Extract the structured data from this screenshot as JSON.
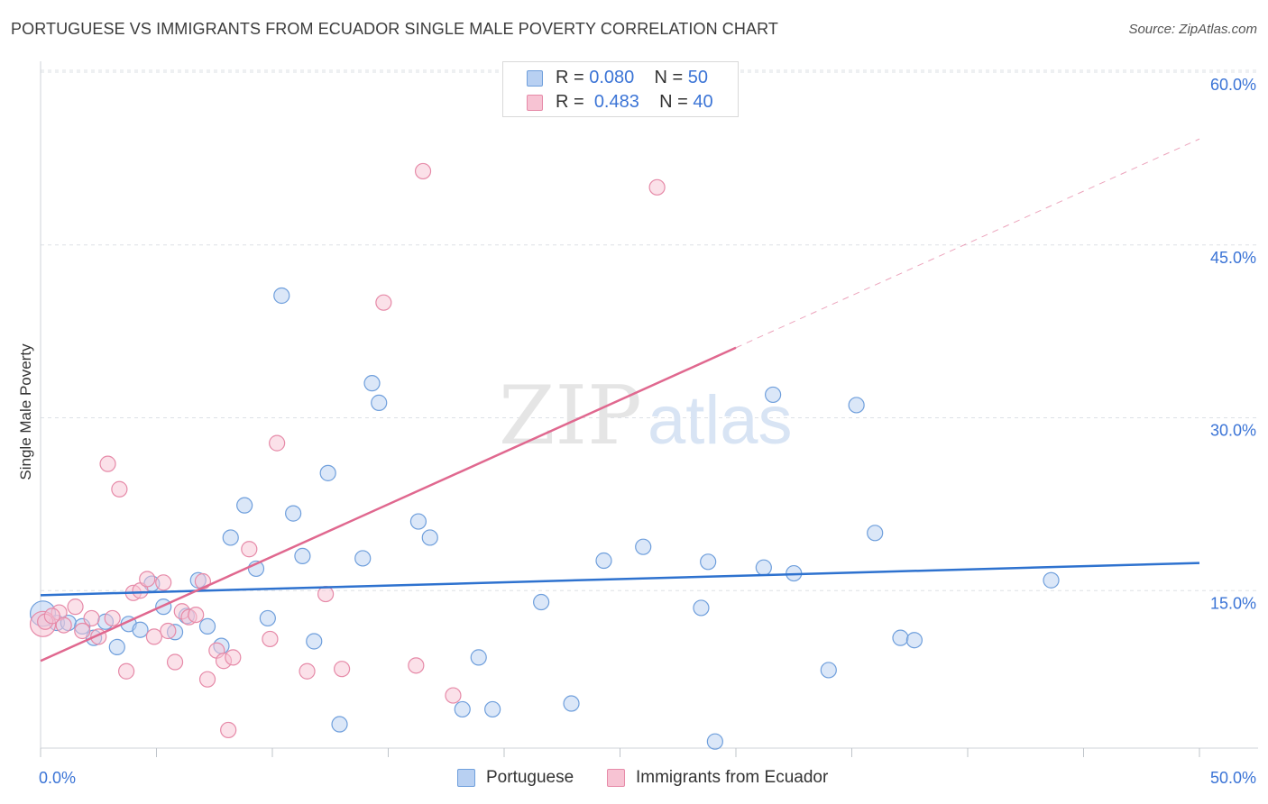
{
  "title": "PORTUGUESE VS IMMIGRANTS FROM ECUADOR SINGLE MALE POVERTY CORRELATION CHART",
  "source": "Source: ZipAtlas.com",
  "watermark": {
    "zip": "ZIP",
    "atlas": "atlas"
  },
  "colors": {
    "blue_fill": "#b8d0f2",
    "blue_stroke": "#6f9fdc",
    "blue_line": "#2e72cf",
    "pink_fill": "#f7c3d3",
    "pink_stroke": "#e68aa8",
    "pink_line": "#e0688f",
    "axis_label": "#3b74d6",
    "grid": "#dde1e6"
  },
  "stats": [
    {
      "r_label": "R =",
      "r_value": "0.080",
      "n_label": "N =",
      "n_value": "50"
    },
    {
      "r_label": "R =",
      "r_value": "0.483",
      "n_label": "N =",
      "n_value": "40"
    }
  ],
  "chart_data": {
    "type": "scatter",
    "title": "PORTUGUESE VS IMMIGRANTS FROM ECUADOR SINGLE MALE POVERTY CORRELATION CHART",
    "xlabel": "",
    "ylabel": "Single Male Poverty",
    "xlim": [
      0,
      50
    ],
    "ylim": [
      0,
      60
    ],
    "x_tick_labels": [
      "0.0%",
      "50.0%"
    ],
    "y_ticks": [
      15,
      30,
      45,
      60
    ],
    "y_tick_labels": [
      "15.0%",
      "30.0%",
      "45.0%",
      "60.0%"
    ],
    "grid": true,
    "legend_position": "top-center",
    "series": [
      {
        "name": "Portuguese",
        "color": "#6f9fdc",
        "r": 0.08,
        "n": 50,
        "trend": {
          "x1": 0,
          "y1": 14.6,
          "x2": 50,
          "y2": 17.4,
          "solid_until": 50
        },
        "points": [
          {
            "x": 0.1,
            "y": 13.0
          },
          {
            "x": 0.7,
            "y": 12.2
          },
          {
            "x": 1.2,
            "y": 12.2
          },
          {
            "x": 1.8,
            "y": 11.9
          },
          {
            "x": 2.3,
            "y": 10.9
          },
          {
            "x": 2.8,
            "y": 12.3
          },
          {
            "x": 3.3,
            "y": 10.1
          },
          {
            "x": 3.8,
            "y": 12.1
          },
          {
            "x": 4.3,
            "y": 11.6
          },
          {
            "x": 4.8,
            "y": 15.6
          },
          {
            "x": 5.3,
            "y": 13.6
          },
          {
            "x": 5.8,
            "y": 11.4
          },
          {
            "x": 6.3,
            "y": 12.8
          },
          {
            "x": 6.8,
            "y": 15.9
          },
          {
            "x": 7.2,
            "y": 11.9
          },
          {
            "x": 7.8,
            "y": 10.2
          },
          {
            "x": 8.2,
            "y": 19.6
          },
          {
            "x": 8.8,
            "y": 22.4
          },
          {
            "x": 9.3,
            "y": 16.9
          },
          {
            "x": 9.8,
            "y": 12.6
          },
          {
            "x": 10.4,
            "y": 40.6
          },
          {
            "x": 10.9,
            "y": 21.7
          },
          {
            "x": 11.3,
            "y": 18.0
          },
          {
            "x": 11.8,
            "y": 10.6
          },
          {
            "x": 12.4,
            "y": 25.2
          },
          {
            "x": 12.9,
            "y": 3.4
          },
          {
            "x": 13.9,
            "y": 17.8
          },
          {
            "x": 14.3,
            "y": 33.0
          },
          {
            "x": 14.6,
            "y": 31.3
          },
          {
            "x": 16.3,
            "y": 21.0
          },
          {
            "x": 16.8,
            "y": 19.6
          },
          {
            "x": 18.2,
            "y": 4.7
          },
          {
            "x": 18.9,
            "y": 9.2
          },
          {
            "x": 19.5,
            "y": 4.7
          },
          {
            "x": 21.6,
            "y": 14.0
          },
          {
            "x": 22.9,
            "y": 5.2
          },
          {
            "x": 24.3,
            "y": 17.6
          },
          {
            "x": 26.0,
            "y": 18.8
          },
          {
            "x": 28.5,
            "y": 13.5
          },
          {
            "x": 28.8,
            "y": 17.5
          },
          {
            "x": 29.1,
            "y": 1.9
          },
          {
            "x": 31.2,
            "y": 17.0
          },
          {
            "x": 31.6,
            "y": 32.0
          },
          {
            "x": 32.5,
            "y": 16.5
          },
          {
            "x": 34.0,
            "y": 8.1
          },
          {
            "x": 35.2,
            "y": 31.1
          },
          {
            "x": 36.0,
            "y": 20.0
          },
          {
            "x": 37.1,
            "y": 10.9
          },
          {
            "x": 37.7,
            "y": 10.7
          },
          {
            "x": 43.6,
            "y": 15.9
          }
        ]
      },
      {
        "name": "Immigrants from Ecuador",
        "color": "#e68aa8",
        "r": 0.483,
        "n": 40,
        "trend": {
          "x1": 0,
          "y1": 8.9,
          "x2": 50,
          "y2": 54.2,
          "solid_until": 30
        },
        "points": [
          {
            "x": 0.1,
            "y": 12.1
          },
          {
            "x": 0.8,
            "y": 13.1
          },
          {
            "x": 1.0,
            "y": 12.0
          },
          {
            "x": 1.5,
            "y": 13.6
          },
          {
            "x": 1.8,
            "y": 11.5
          },
          {
            "x": 2.2,
            "y": 12.6
          },
          {
            "x": 2.5,
            "y": 11.0
          },
          {
            "x": 2.9,
            "y": 26.0
          },
          {
            "x": 3.1,
            "y": 12.6
          },
          {
            "x": 3.4,
            "y": 23.8
          },
          {
            "x": 3.7,
            "y": 8.0
          },
          {
            "x": 4.0,
            "y": 14.8
          },
          {
            "x": 4.3,
            "y": 15.0
          },
          {
            "x": 4.6,
            "y": 16.0
          },
          {
            "x": 4.9,
            "y": 11.0
          },
          {
            "x": 5.3,
            "y": 15.7
          },
          {
            "x": 5.5,
            "y": 11.5
          },
          {
            "x": 5.8,
            "y": 8.8
          },
          {
            "x": 6.1,
            "y": 13.2
          },
          {
            "x": 6.4,
            "y": 12.7
          },
          {
            "x": 6.7,
            "y": 12.9
          },
          {
            "x": 7.0,
            "y": 15.8
          },
          {
            "x": 7.2,
            "y": 7.3
          },
          {
            "x": 7.6,
            "y": 9.8
          },
          {
            "x": 7.9,
            "y": 8.9
          },
          {
            "x": 8.1,
            "y": 2.9
          },
          {
            "x": 8.3,
            "y": 9.2
          },
          {
            "x": 9.0,
            "y": 18.6
          },
          {
            "x": 9.9,
            "y": 10.8
          },
          {
            "x": 10.2,
            "y": 27.8
          },
          {
            "x": 11.5,
            "y": 8.0
          },
          {
            "x": 12.3,
            "y": 14.7
          },
          {
            "x": 13.0,
            "y": 8.2
          },
          {
            "x": 14.8,
            "y": 40.0
          },
          {
            "x": 16.2,
            "y": 8.5
          },
          {
            "x": 16.5,
            "y": 51.4
          },
          {
            "x": 17.8,
            "y": 5.9
          },
          {
            "x": 26.6,
            "y": 50.0
          },
          {
            "x": 0.2,
            "y": 12.3
          },
          {
            "x": 0.5,
            "y": 12.8
          }
        ]
      }
    ]
  },
  "legend": [
    {
      "label": "Portuguese"
    },
    {
      "label": "Immigrants from Ecuador"
    }
  ]
}
